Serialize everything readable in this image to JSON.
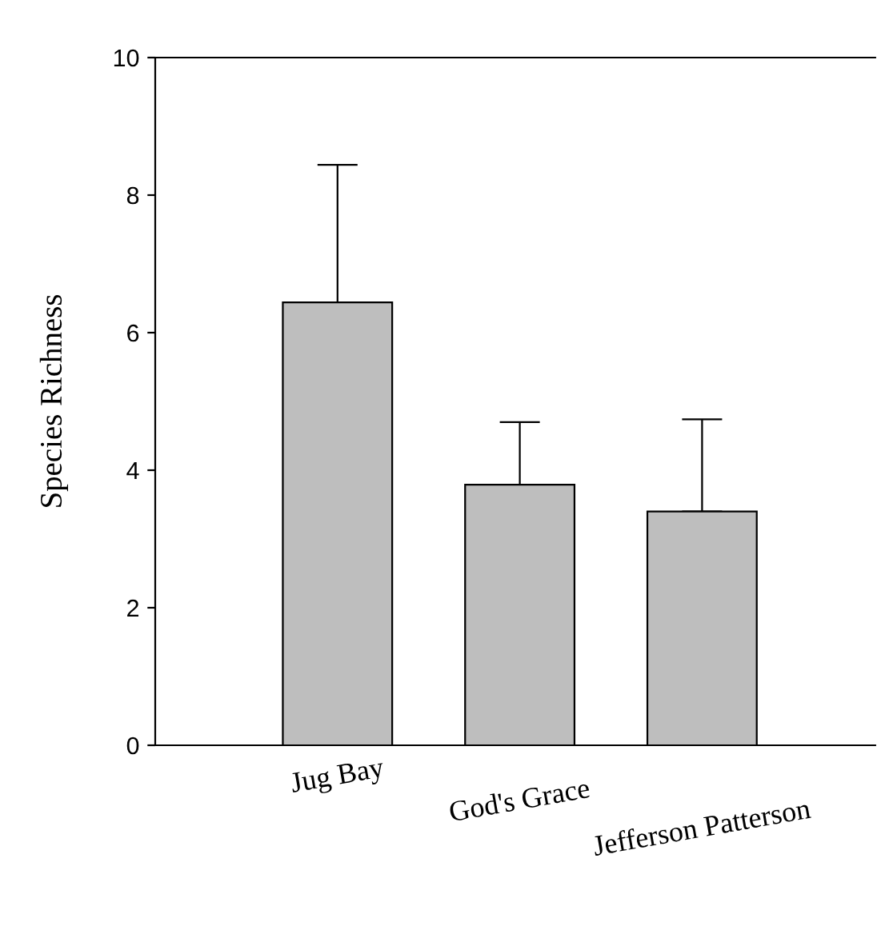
{
  "chart_data": {
    "type": "bar",
    "ylabel": "Species Richness",
    "categories": [
      "Jug Bay",
      "God's Grace",
      "Jefferson Patterson"
    ],
    "values": [
      6.44,
      3.79,
      3.4
    ],
    "errors": [
      [
        6.44,
        8.44
      ],
      [
        3.79,
        4.7
      ],
      [
        3.4,
        4.74
      ]
    ],
    "color": "#bebebe",
    "ylim": [
      0,
      10
    ],
    "yticks": [
      0,
      2,
      4,
      6,
      8,
      10
    ],
    "grid": false
  }
}
